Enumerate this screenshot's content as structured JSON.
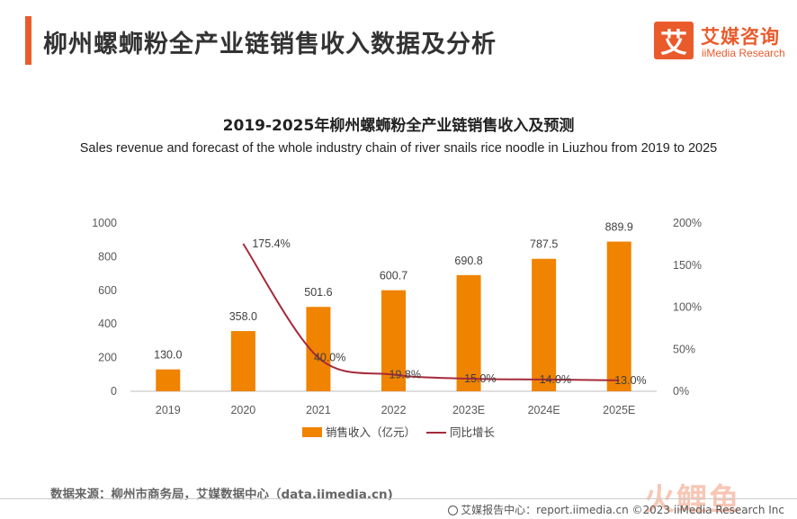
{
  "header": {
    "title": "柳州螺蛳粉全产业链销售收入数据及分析",
    "logo_mark": "艾",
    "logo_cn": "艾媒咨询",
    "logo_en": "iiMedia Research"
  },
  "chart_data": {
    "type": "bar",
    "title": "2019-2025年柳州螺蛳粉全产业链销售收入及预测",
    "subtitle": "Sales revenue and forecast of the whole industry chain of river snails rice noodle in Liuzhou  from 2019 to 2025",
    "categories": [
      "2019",
      "2020",
      "2021",
      "2022",
      "2023E",
      "2024E",
      "2025E"
    ],
    "series": [
      {
        "name": "销售收入（亿元）",
        "type": "bar",
        "axis": "left",
        "color": "#f08300",
        "values": [
          130.0,
          358.0,
          501.6,
          600.7,
          690.8,
          787.5,
          889.9
        ],
        "labels": [
          "130.0",
          "358.0",
          "501.6",
          "600.7",
          "690.8",
          "787.5",
          "889.9"
        ]
      },
      {
        "name": "同比增长",
        "type": "line",
        "axis": "right",
        "color": "#a52a3a",
        "values": [
          null,
          175.4,
          40.0,
          19.8,
          15.0,
          14.0,
          13.0
        ],
        "labels": [
          null,
          "175.4%",
          "40.0%",
          "19.8%",
          "15.0%",
          "14.0%",
          "13.0%"
        ]
      }
    ],
    "ylim": [
      0,
      1000
    ],
    "yticks": [
      "0",
      "200",
      "400",
      "600",
      "800",
      "1000"
    ],
    "y2lim": [
      0,
      200
    ],
    "y2ticks": [
      "0%",
      "50%",
      "100%",
      "150%",
      "200%"
    ],
    "legend_position": "bottom-center",
    "grid": false
  },
  "footer": {
    "source": "数据来源：柳州市商务局，艾媒数据中心（data.iimedia.cn)",
    "report": "艾媒报告中心：report.iimedia.cn  ©2023  iiMedia Research  Inc",
    "watermark": "火鲤鱼"
  }
}
